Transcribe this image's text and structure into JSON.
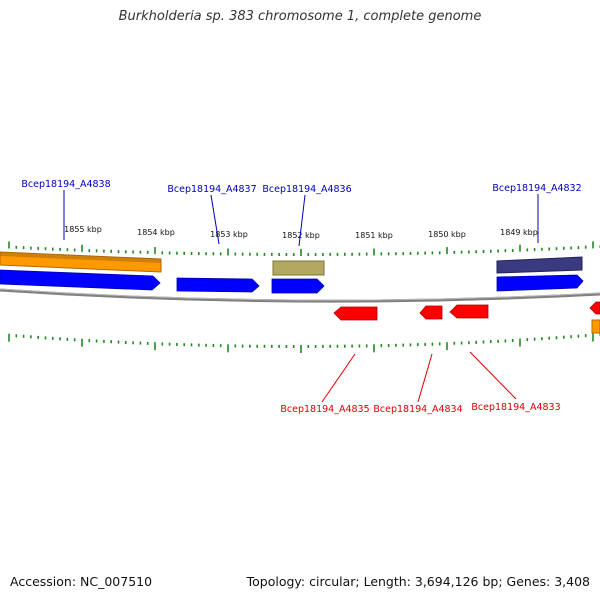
{
  "title": "Burkholderia sp. 383 chromosome 1, complete genome",
  "accession": "Accession: NC_007510",
  "summary": "Topology: circular; Length: 3,694,126 bp; Genes: 3,408",
  "colors": {
    "forward_label": "#0000bb",
    "reverse_label": "#dd0000",
    "cds_forward": "#0000ff",
    "cds_reverse": "#ff0000",
    "gene_orange": "#ff9900",
    "gene_olive": "#b3a860",
    "gene_navy": "#3a3a80",
    "backbone": "#808080",
    "tick": "#228822"
  },
  "kbp_labels": [
    "1855 kbp",
    "1854 kbp",
    "1853 kbp",
    "1852 kbp",
    "1851 kbp",
    "1850 kbp",
    "1849 kbp"
  ],
  "forward_gene_labels": [
    "Bcep18194_A4838",
    "Bcep18194_A4837",
    "Bcep18194_A4836",
    "Bcep18194_A4832"
  ],
  "reverse_gene_labels": [
    "Bcep18194_A4835",
    "Bcep18194_A4834",
    "Bcep18194_A4833"
  ]
}
